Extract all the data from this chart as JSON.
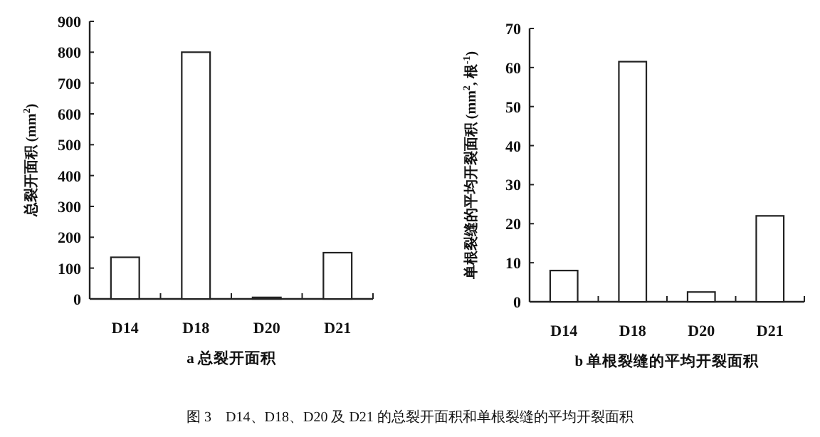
{
  "chart_data": [
    {
      "type": "bar",
      "title": "a  总裂开面积",
      "ylabel": "总裂开面积 (mm$^{2}$)",
      "categories": [
        "D14",
        "D18",
        "D20",
        "D21"
      ],
      "values": [
        135,
        800,
        5,
        150
      ],
      "color": "#ffffff",
      "ylim": [
        0,
        900
      ],
      "yticks": [
        0,
        100,
        200,
        300,
        400,
        500,
        600,
        700,
        800,
        900
      ],
      "annotations": [
        "图 3　D14、D18、D20 及 D21 的总裂开面积和单根裂缝的平均开裂面积"
      ]
    },
    {
      "type": "bar",
      "title": "b  单根裂缝的平均开裂面积",
      "ylabel": "单根裂缝的平均开裂面积 (mm$^{2}$, 根$^{-1}$)",
      "categories": [
        "D14",
        "D18",
        "D20",
        "D21"
      ],
      "values": [
        8,
        61.5,
        2.5,
        22
      ],
      "color": "#ffffff",
      "ylim": [
        0,
        70
      ],
      "yticks": [
        0,
        10,
        20,
        30,
        40,
        50,
        60,
        70
      ]
    }
  ]
}
